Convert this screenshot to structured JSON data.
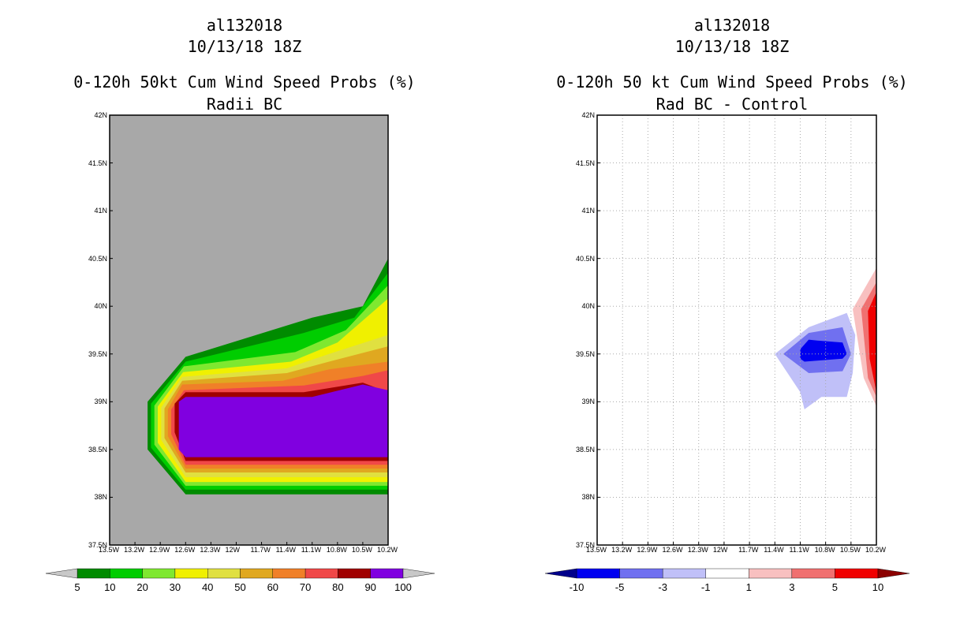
{
  "chart_data": [
    {
      "type": "filled-contour",
      "storm_id": "al132018",
      "datetime": "10/13/18 18Z",
      "title": "0-120h 50kt Cum Wind Speed Probs (%)",
      "subtitle": "Radii BC",
      "background_color": "#a8a8a8",
      "xlim": [
        -13.5,
        -10.2
      ],
      "ylim": [
        37.5,
        42
      ],
      "x_tick_labels": [
        "13.5W",
        "13.2W",
        "12.9W",
        "12.6W",
        "12.3W",
        "12W",
        "11.7W",
        "11.4W",
        "11.1W",
        "10.8W",
        "10.5W",
        "10.2W"
      ],
      "y_tick_labels": [
        "37.5N",
        "38N",
        "38.5N",
        "39N",
        "39.5N",
        "40N",
        "40.5N",
        "41N",
        "41.5N",
        "42N"
      ],
      "grid": false,
      "colorbar": {
        "labels": [
          "5",
          "10",
          "20",
          "30",
          "40",
          "50",
          "60",
          "70",
          "80",
          "90",
          "100"
        ],
        "colors": [
          "#008b00",
          "#00cd00",
          "#7fe830",
          "#f0f000",
          "#e0e040",
          "#e0a820",
          "#f08028",
          "#f04848",
          "#a00000",
          "#8000e0"
        ],
        "under_color": "#c8c8c8",
        "over_color": "#c8c8c8"
      },
      "contour_levels": [
        {
          "min": 5,
          "color": "#008b00",
          "polygon": [
            [
              -13.05,
              39.0
            ],
            [
              -12.6,
              39.47
            ],
            [
              -11.1,
              39.88
            ],
            [
              -10.5,
              40.0
            ],
            [
              -10.2,
              40.5
            ],
            [
              -10.2,
              38.03
            ],
            [
              -12.6,
              38.03
            ],
            [
              -13.05,
              38.5
            ]
          ]
        },
        {
          "min": 10,
          "color": "#00cd00",
          "polygon": [
            [
              -13.01,
              38.98
            ],
            [
              -12.6,
              39.42
            ],
            [
              -11.2,
              39.72
            ],
            [
              -10.6,
              39.88
            ],
            [
              -10.2,
              40.35
            ],
            [
              -10.2,
              38.08
            ],
            [
              -12.6,
              38.08
            ],
            [
              -13.01,
              38.52
            ]
          ]
        },
        {
          "min": 20,
          "color": "#7fe830",
          "polygon": [
            [
              -12.97,
              38.96
            ],
            [
              -12.62,
              39.37
            ],
            [
              -11.3,
              39.52
            ],
            [
              -10.7,
              39.75
            ],
            [
              -10.2,
              40.22
            ],
            [
              -10.2,
              38.12
            ],
            [
              -12.6,
              38.12
            ],
            [
              -12.97,
              38.55
            ]
          ]
        },
        {
          "min": 30,
          "color": "#f0f000",
          "polygon": [
            [
              -12.93,
              38.95
            ],
            [
              -12.63,
              39.31
            ],
            [
              -11.35,
              39.42
            ],
            [
              -10.8,
              39.62
            ],
            [
              -10.2,
              40.08
            ],
            [
              -10.2,
              38.16
            ],
            [
              -12.6,
              38.16
            ],
            [
              -12.93,
              38.57
            ]
          ]
        },
        {
          "min": 40,
          "color": "#e0e040",
          "polygon": [
            [
              -12.89,
              38.94
            ],
            [
              -12.64,
              39.26
            ],
            [
              -11.4,
              39.35
            ],
            [
              -10.9,
              39.5
            ],
            [
              -10.2,
              39.7
            ],
            [
              -10.2,
              38.21
            ],
            [
              -12.6,
              38.21
            ],
            [
              -12.89,
              38.6
            ]
          ]
        },
        {
          "min": 50,
          "color": "#e0a820",
          "polygon": [
            [
              -12.85,
              38.93
            ],
            [
              -12.64,
              39.22
            ],
            [
              -11.4,
              39.3
            ],
            [
              -10.9,
              39.42
            ],
            [
              -10.2,
              39.58
            ],
            [
              -10.2,
              38.26
            ],
            [
              -12.6,
              38.26
            ],
            [
              -12.85,
              38.62
            ]
          ]
        },
        {
          "min": 60,
          "color": "#f08028",
          "polygon": [
            [
              -12.81,
              38.92
            ],
            [
              -12.64,
              39.18
            ],
            [
              -11.45,
              39.22
            ],
            [
              -10.9,
              39.34
            ],
            [
              -10.2,
              39.42
            ],
            [
              -10.2,
              38.3
            ],
            [
              -12.6,
              38.3
            ],
            [
              -12.81,
              38.64
            ]
          ]
        },
        {
          "min": 70,
          "color": "#f04848",
          "polygon": [
            [
              -12.77,
              38.92
            ],
            [
              -12.62,
              39.12
            ],
            [
              -11.2,
              39.17
            ],
            [
              -10.5,
              39.27
            ],
            [
              -10.2,
              39.33
            ],
            [
              -10.2,
              38.34
            ],
            [
              -12.6,
              38.34
            ],
            [
              -12.77,
              38.66
            ]
          ]
        },
        {
          "min": 80,
          "color": "#a00000",
          "polygon": [
            [
              -12.73,
              38.98
            ],
            [
              -12.6,
              39.1
            ],
            [
              -11.2,
              39.1
            ],
            [
              -10.5,
              39.2
            ],
            [
              -10.2,
              39.1
            ],
            [
              -10.2,
              38.38
            ],
            [
              -12.6,
              38.38
            ],
            [
              -12.73,
              38.68
            ]
          ]
        },
        {
          "min": 90,
          "color": "#8000e0",
          "polygon": [
            [
              -12.68,
              39.0
            ],
            [
              -12.6,
              39.05
            ],
            [
              -11.1,
              39.05
            ],
            [
              -10.5,
              39.18
            ],
            [
              -10.2,
              39.12
            ],
            [
              -10.2,
              38.42
            ],
            [
              -12.6,
              38.42
            ],
            [
              -12.68,
              38.5
            ]
          ]
        }
      ]
    },
    {
      "type": "filled-contour",
      "storm_id": "al132018",
      "datetime": "10/13/18 18Z",
      "title": "0-120h 50 kt Cum Wind Speed Probs (%)",
      "subtitle": "Rad BC - Control",
      "background_color": "#ffffff",
      "xlim": [
        -13.5,
        -10.2
      ],
      "ylim": [
        37.5,
        42
      ],
      "x_tick_labels": [
        "13.5W",
        "13.2W",
        "12.9W",
        "12.6W",
        "12.3W",
        "12W",
        "11.7W",
        "11.4W",
        "11.1W",
        "10.8W",
        "10.5W",
        "10.2W"
      ],
      "y_tick_labels": [
        "37.5N",
        "38N",
        "38.5N",
        "39N",
        "39.5N",
        "40N",
        "40.5N",
        "41N",
        "41.5N",
        "42N"
      ],
      "grid": true,
      "colorbar": {
        "labels": [
          "-10",
          "-5",
          "-3",
          "-1",
          "1",
          "3",
          "5",
          "10"
        ],
        "colors": [
          "#0000f0",
          "#7070f0",
          "#c0c0f8",
          "#ffffff",
          "#f8c0c0",
          "#f07070",
          "#f00000"
        ],
        "under_color": "#00008b",
        "over_color": "#8b0000"
      },
      "contour_levels": [
        {
          "range": [
            -3,
            -1
          ],
          "color": "#c0c0f8",
          "polygon": [
            [
              -11.4,
              39.5
            ],
            [
              -11.0,
              39.78
            ],
            [
              -10.55,
              39.93
            ],
            [
              -10.45,
              39.7
            ],
            [
              -10.48,
              39.3
            ],
            [
              -10.55,
              39.05
            ],
            [
              -10.85,
              39.05
            ],
            [
              -11.05,
              38.92
            ],
            [
              -11.1,
              39.1
            ]
          ]
        },
        {
          "range": [
            -5,
            -3
          ],
          "color": "#7070f0",
          "polygon": [
            [
              -11.3,
              39.5
            ],
            [
              -11.0,
              39.72
            ],
            [
              -10.6,
              39.78
            ],
            [
              -10.5,
              39.5
            ],
            [
              -10.6,
              39.32
            ],
            [
              -11.0,
              39.3
            ]
          ]
        },
        {
          "range": [
            -10,
            -5
          ],
          "color": "#0000f0",
          "polygon": [
            [
              -11.1,
              39.55
            ],
            [
              -11.0,
              39.65
            ],
            [
              -10.9,
              39.64
            ],
            [
              -10.6,
              39.62
            ],
            [
              -10.55,
              39.5
            ],
            [
              -10.6,
              39.45
            ],
            [
              -11.05,
              39.42
            ],
            [
              -11.1,
              39.45
            ]
          ]
        },
        {
          "range": [
            1,
            3
          ],
          "color": "#f8c0c0",
          "polygon": [
            [
              -10.48,
              39.97
            ],
            [
              -10.2,
              40.4
            ],
            [
              -10.2,
              38.95
            ],
            [
              -10.35,
              39.25
            ]
          ]
        },
        {
          "range": [
            3,
            5
          ],
          "color": "#f07070",
          "polygon": [
            [
              -10.38,
              39.97
            ],
            [
              -10.2,
              40.25
            ],
            [
              -10.2,
              39.05
            ],
            [
              -10.3,
              39.25
            ]
          ]
        },
        {
          "range": [
            5,
            10
          ],
          "color": "#f00000",
          "polygon": [
            [
              -10.3,
              39.95
            ],
            [
              -10.2,
              40.15
            ],
            [
              -10.2,
              39.1
            ],
            [
              -10.28,
              39.45
            ]
          ]
        }
      ]
    }
  ]
}
